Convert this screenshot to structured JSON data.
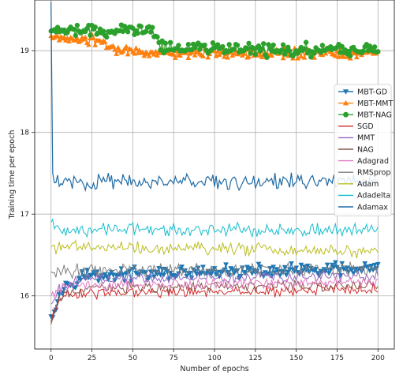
{
  "chart_data": {
    "type": "line",
    "title": "",
    "xlabel": "Number of epochs",
    "ylabel": "Training time per epoch",
    "xlim": [
      -10,
      210
    ],
    "ylim": [
      15.35,
      19.62
    ],
    "xticks": [
      0,
      25,
      50,
      75,
      100,
      125,
      150,
      175,
      200
    ],
    "yticks": [
      16,
      17,
      18,
      19
    ],
    "grid": true,
    "legend_position": "right",
    "n_epochs": 200,
    "series": [
      {
        "name": "MBT-GD",
        "color": "#1f77b4",
        "marker": "triangle-down",
        "linewidth": 1.2,
        "keyframes": [
          [
            0,
            15.75
          ],
          [
            5,
            16.02
          ],
          [
            10,
            16.15
          ],
          [
            20,
            16.25
          ],
          [
            200,
            16.33
          ]
        ],
        "noise": 0.05
      },
      {
        "name": "MBT-MMT",
        "color": "#ff7f0e",
        "marker": "triangle-up",
        "linewidth": 1.2,
        "keyframes": [
          [
            0,
            19.18
          ],
          [
            30,
            19.12
          ],
          [
            40,
            19.0
          ],
          [
            60,
            18.97
          ],
          [
            200,
            18.97
          ]
        ],
        "noise": 0.04
      },
      {
        "name": "MBT-NAG",
        "color": "#2ca02c",
        "marker": "circle",
        "linewidth": 1.2,
        "keyframes": [
          [
            0,
            19.24
          ],
          [
            60,
            19.24
          ],
          [
            70,
            19.03
          ],
          [
            200,
            19.0
          ]
        ],
        "noise": 0.05
      },
      {
        "name": "SGD",
        "color": "#d62728",
        "marker": "none",
        "linewidth": 1.0,
        "keyframes": [
          [
            0,
            15.68
          ],
          [
            4,
            15.9
          ],
          [
            10,
            16.02
          ],
          [
            200,
            16.08
          ]
        ],
        "noise": 0.04
      },
      {
        "name": "MMT",
        "color": "#9467bd",
        "marker": "none",
        "linewidth": 1.0,
        "keyframes": [
          [
            0,
            15.9
          ],
          [
            5,
            16.08
          ],
          [
            20,
            16.2
          ],
          [
            200,
            16.25
          ]
        ],
        "noise": 0.04
      },
      {
        "name": "NAG",
        "color": "#8c564b",
        "marker": "none",
        "linewidth": 1.0,
        "keyframes": [
          [
            0,
            15.65
          ],
          [
            5,
            15.98
          ],
          [
            20,
            16.1
          ],
          [
            200,
            16.13
          ]
        ],
        "noise": 0.04
      },
      {
        "name": "Adagrad",
        "color": "#e377c2",
        "marker": "none",
        "linewidth": 1.0,
        "keyframes": [
          [
            0,
            16.0
          ],
          [
            10,
            16.12
          ],
          [
            200,
            16.17
          ]
        ],
        "noise": 0.04
      },
      {
        "name": "RMSprop",
        "color": "#7f7f7f",
        "marker": "none",
        "linewidth": 1.0,
        "keyframes": [
          [
            0,
            16.3
          ],
          [
            200,
            16.33
          ]
        ],
        "noise": 0.05
      },
      {
        "name": "Adam",
        "color": "#bcbd22",
        "marker": "none",
        "linewidth": 1.0,
        "keyframes": [
          [
            0,
            16.6
          ],
          [
            200,
            16.55
          ]
        ],
        "noise": 0.05
      },
      {
        "name": "Adadelta",
        "color": "#17becf",
        "marker": "none",
        "linewidth": 1.0,
        "keyframes": [
          [
            0,
            16.9
          ],
          [
            5,
            16.82
          ],
          [
            200,
            16.8
          ]
        ],
        "noise": 0.05
      },
      {
        "name": "Adamax",
        "color": "#1f6aa5",
        "marker": "none",
        "linewidth": 1.2,
        "keyframes": [
          [
            0,
            19.6
          ],
          [
            1,
            17.4
          ],
          [
            200,
            17.4
          ]
        ],
        "noise": 0.06
      }
    ]
  }
}
